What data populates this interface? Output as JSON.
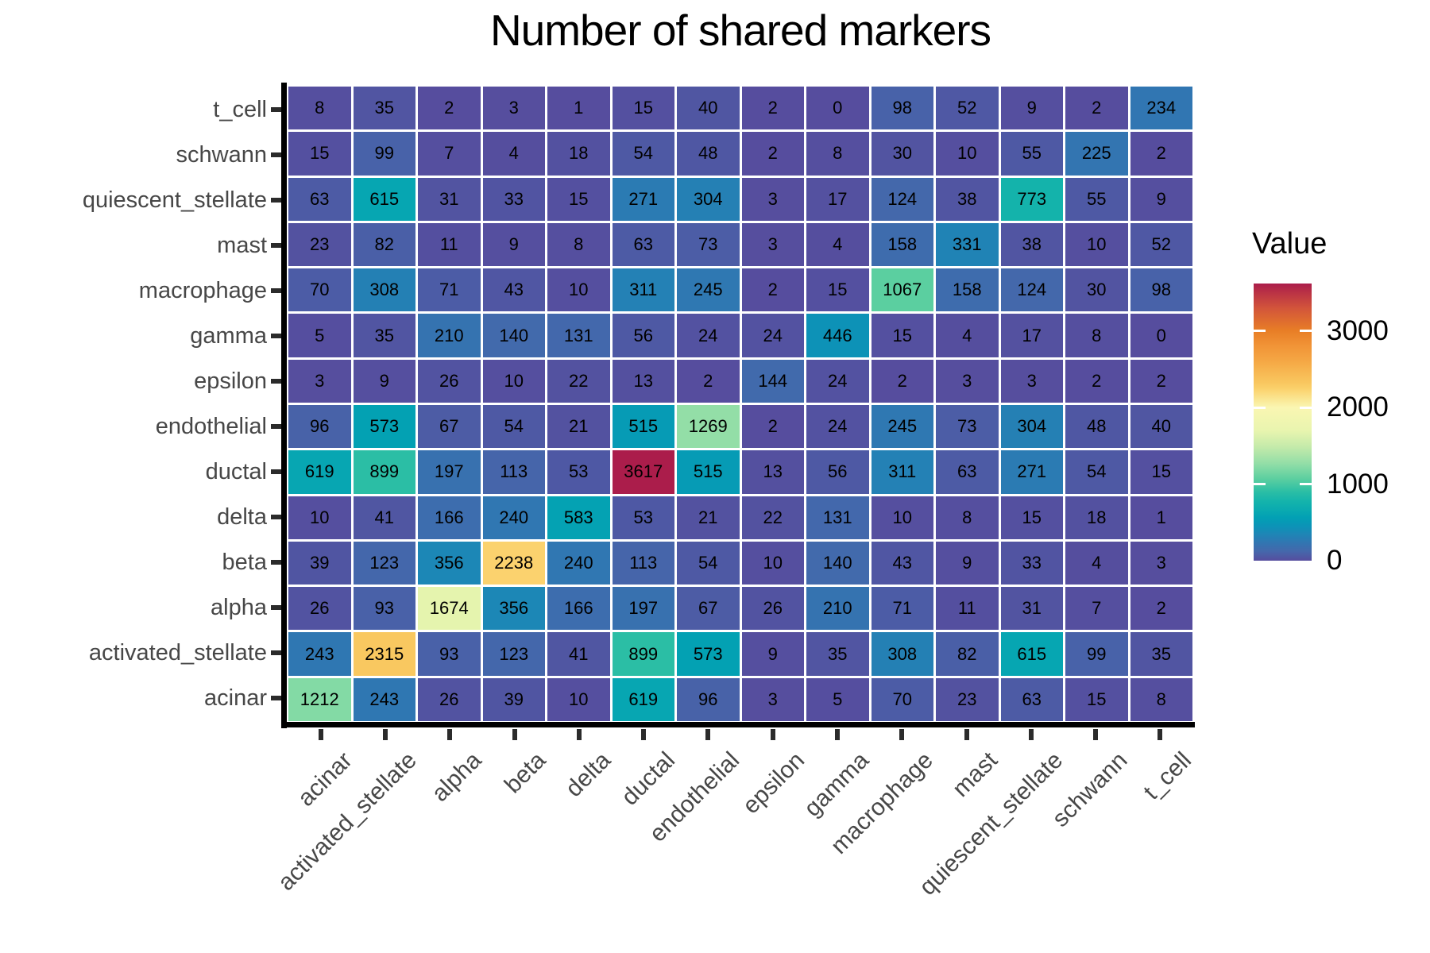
{
  "title": "Number of shared markers",
  "legend": {
    "title": "Value",
    "ticks": [
      0,
      1000,
      2000,
      3000
    ],
    "domain_min": 0,
    "domain_max": 3617
  },
  "colors": {
    "background": "#ffffff",
    "axis_line": "#000000",
    "tick_mark": "#2b2b2b",
    "axis_label_text": "#474747",
    "cell_text": "#000000",
    "grid_gap": "#ffffff",
    "colormap_stops": [
      [
        0,
        "#564D9E"
      ],
      [
        120,
        "#4567AB"
      ],
      [
        240,
        "#3077B2"
      ],
      [
        350,
        "#1D86B6"
      ],
      [
        450,
        "#0C93B7"
      ],
      [
        560,
        "#02A0B4"
      ],
      [
        660,
        "#0AAAB0"
      ],
      [
        780,
        "#15B4AB"
      ],
      [
        900,
        "#2BBEA5"
      ],
      [
        1070,
        "#5CCFA0"
      ],
      [
        1270,
        "#93DEA7"
      ],
      [
        1480,
        "#C3EAAA"
      ],
      [
        1700,
        "#E9F5AF"
      ],
      [
        2000,
        "#FAF6B2"
      ],
      [
        2240,
        "#FBD26D"
      ],
      [
        2320,
        "#F9C75F"
      ],
      [
        2600,
        "#F5A845"
      ],
      [
        2800,
        "#F19437"
      ],
      [
        3000,
        "#E87E26"
      ],
      [
        3300,
        "#D2543B"
      ],
      [
        3617,
        "#AB1D4B"
      ]
    ]
  },
  "chart_data": {
    "type": "heatmap",
    "title": "Number of shared markers",
    "legend_title": "Value",
    "legend_position": "right",
    "colorbar_ticks": [
      0,
      1000,
      2000,
      3000
    ],
    "value_range": [
      0,
      3617
    ],
    "x_categories": [
      "acinar",
      "activated_stellate",
      "alpha",
      "beta",
      "delta",
      "ductal",
      "endothelial",
      "epsilon",
      "gamma",
      "macrophage",
      "mast",
      "quiescent_stellate",
      "schwann",
      "t_cell"
    ],
    "y_categories_top_to_bottom": [
      "t_cell",
      "schwann",
      "quiescent_stellate",
      "mast",
      "macrophage",
      "gamma",
      "epsilon",
      "endothelial",
      "ductal",
      "delta",
      "beta",
      "alpha",
      "activated_stellate",
      "acinar"
    ],
    "values_rows_top_to_bottom": [
      [
        8,
        35,
        2,
        3,
        1,
        15,
        40,
        2,
        0,
        98,
        52,
        9,
        2,
        234
      ],
      [
        15,
        99,
        7,
        4,
        18,
        54,
        48,
        2,
        8,
        30,
        10,
        55,
        225,
        2
      ],
      [
        63,
        615,
        31,
        33,
        15,
        271,
        304,
        3,
        17,
        124,
        38,
        773,
        55,
        9
      ],
      [
        23,
        82,
        11,
        9,
        8,
        63,
        73,
        3,
        4,
        158,
        331,
        38,
        10,
        52
      ],
      [
        70,
        308,
        71,
        43,
        10,
        311,
        245,
        2,
        15,
        1067,
        158,
        124,
        30,
        98
      ],
      [
        5,
        35,
        210,
        140,
        131,
        56,
        24,
        24,
        446,
        15,
        4,
        17,
        8,
        0
      ],
      [
        3,
        9,
        26,
        10,
        22,
        13,
        2,
        144,
        24,
        2,
        3,
        3,
        2,
        2
      ],
      [
        96,
        573,
        67,
        54,
        21,
        515,
        1269,
        2,
        24,
        245,
        73,
        304,
        48,
        40
      ],
      [
        619,
        899,
        197,
        113,
        53,
        3617,
        515,
        13,
        56,
        311,
        63,
        271,
        54,
        15
      ],
      [
        10,
        41,
        166,
        240,
        583,
        53,
        21,
        22,
        131,
        10,
        8,
        15,
        18,
        1
      ],
      [
        39,
        123,
        356,
        2238,
        240,
        113,
        54,
        10,
        140,
        43,
        9,
        33,
        4,
        3
      ],
      [
        26,
        93,
        1674,
        356,
        166,
        197,
        67,
        26,
        210,
        71,
        11,
        31,
        7,
        2
      ],
      [
        243,
        2315,
        93,
        123,
        41,
        899,
        573,
        9,
        35,
        308,
        82,
        615,
        99,
        35
      ],
      [
        1212,
        243,
        26,
        39,
        10,
        619,
        96,
        3,
        5,
        70,
        23,
        63,
        15,
        8
      ]
    ]
  }
}
